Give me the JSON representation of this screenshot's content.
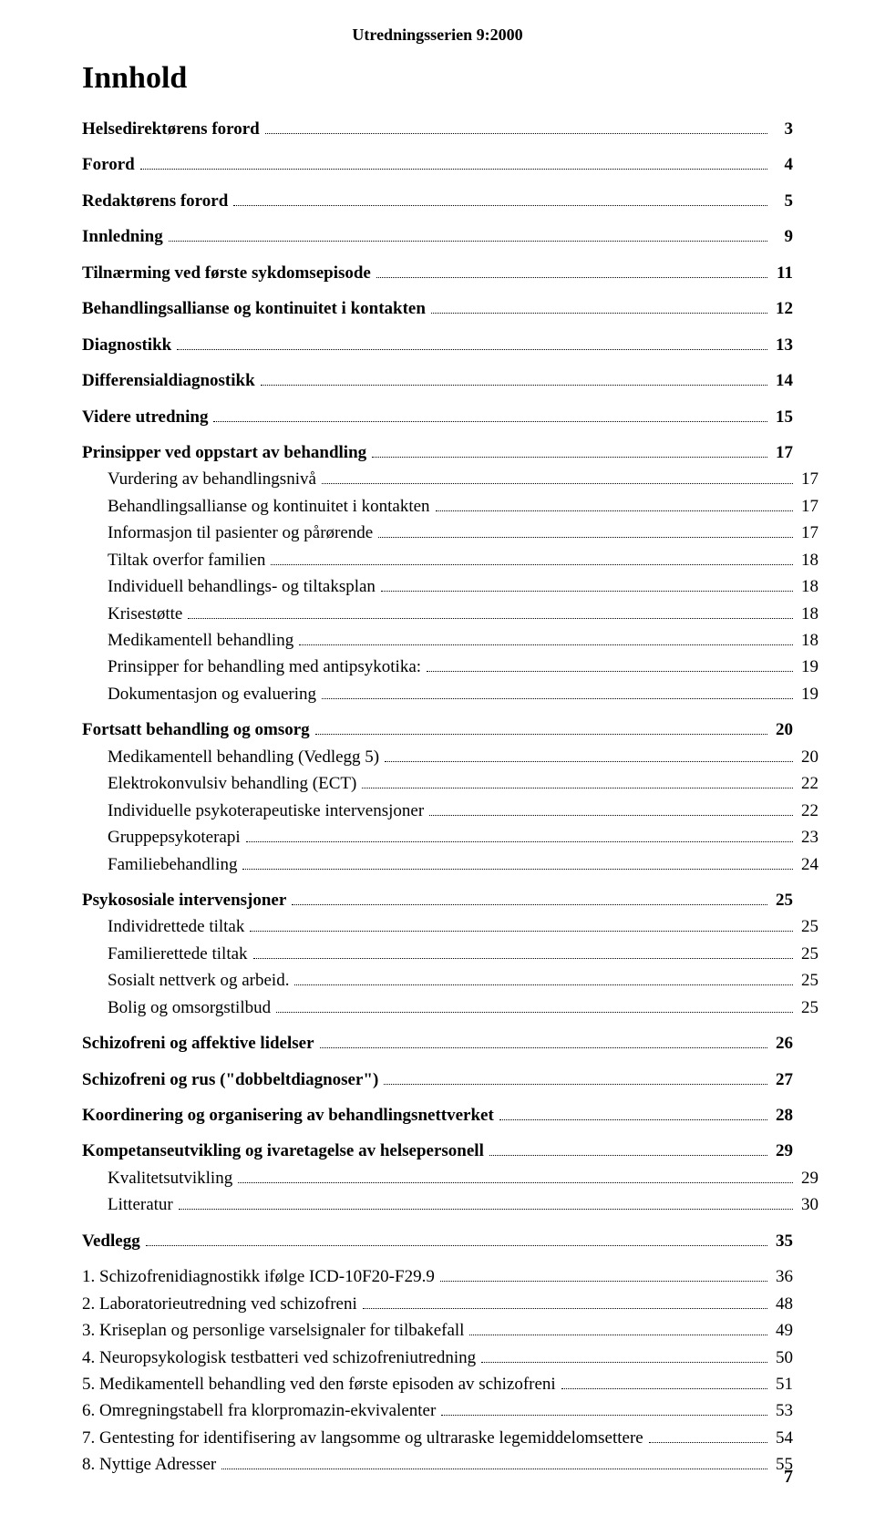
{
  "series_header": "Utredningsserien 9:2000",
  "doc_title": "Innhold",
  "page_number": "7",
  "toc": [
    {
      "label": "Helsedirektørens forord",
      "page": "3",
      "bold": true,
      "indent": 0,
      "gap_before": false
    },
    {
      "label": "Forord",
      "page": "4",
      "bold": true,
      "indent": 0,
      "gap_before": true
    },
    {
      "label": "Redaktørens forord",
      "page": "5",
      "bold": true,
      "indent": 0,
      "gap_before": true
    },
    {
      "label": "Innledning",
      "page": "9",
      "bold": true,
      "indent": 0,
      "gap_before": true
    },
    {
      "label": "Tilnærming ved første sykdomsepisode",
      "page": "11",
      "bold": true,
      "indent": 0,
      "gap_before": true
    },
    {
      "label": "Behandlingsallianse og kontinuitet i kontakten",
      "page": "12",
      "bold": true,
      "indent": 0,
      "gap_before": true
    },
    {
      "label": "Diagnostikk",
      "page": "13",
      "bold": true,
      "indent": 0,
      "gap_before": true
    },
    {
      "label": "Differensialdiagnostikk",
      "page": "14",
      "bold": true,
      "indent": 0,
      "gap_before": true
    },
    {
      "label": "Videre utredning",
      "page": "15",
      "bold": true,
      "indent": 0,
      "gap_before": true
    },
    {
      "label": "Prinsipper ved oppstart av behandling",
      "page": "17",
      "bold": true,
      "indent": 0,
      "gap_before": true
    },
    {
      "label": "Vurdering av behandlingsnivå",
      "page": "17",
      "bold": false,
      "indent": 1,
      "gap_before": false
    },
    {
      "label": "Behandlingsallianse og kontinuitet i kontakten",
      "page": "17",
      "bold": false,
      "indent": 1,
      "gap_before": false
    },
    {
      "label": "Informasjon til pasienter og pårørende",
      "page": "17",
      "bold": false,
      "indent": 1,
      "gap_before": false
    },
    {
      "label": "Tiltak overfor familien",
      "page": "18",
      "bold": false,
      "indent": 1,
      "gap_before": false
    },
    {
      "label": "Individuell behandlings- og tiltaksplan",
      "page": "18",
      "bold": false,
      "indent": 1,
      "gap_before": false
    },
    {
      "label": "Krisestøtte",
      "page": "18",
      "bold": false,
      "indent": 1,
      "gap_before": false
    },
    {
      "label": "Medikamentell behandling",
      "page": "18",
      "bold": false,
      "indent": 1,
      "gap_before": false
    },
    {
      "label": "Prinsipper for behandling med antipsykotika:",
      "page": "19",
      "bold": false,
      "indent": 1,
      "gap_before": false
    },
    {
      "label": "Dokumentasjon og evaluering",
      "page": "19",
      "bold": false,
      "indent": 1,
      "gap_before": false
    },
    {
      "label": "Fortsatt behandling og omsorg",
      "page": "20",
      "bold": true,
      "indent": 0,
      "gap_before": true
    },
    {
      "label": "Medikamentell behandling (Vedlegg 5)",
      "page": "20",
      "bold": false,
      "indent": 1,
      "gap_before": false
    },
    {
      "label": "Elektrokonvulsiv behandling (ECT)",
      "page": "22",
      "bold": false,
      "indent": 1,
      "gap_before": false
    },
    {
      "label": "Individuelle psykoterapeutiske intervensjoner",
      "page": "22",
      "bold": false,
      "indent": 1,
      "gap_before": false
    },
    {
      "label": "Gruppepsykoterapi",
      "page": "23",
      "bold": false,
      "indent": 1,
      "gap_before": false
    },
    {
      "label": "Familiebehandling",
      "page": "24",
      "bold": false,
      "indent": 1,
      "gap_before": false
    },
    {
      "label": "Psykososiale intervensjoner",
      "page": "25",
      "bold": true,
      "indent": 0,
      "gap_before": true
    },
    {
      "label": "Individrettede tiltak",
      "page": "25",
      "bold": false,
      "indent": 1,
      "gap_before": false
    },
    {
      "label": "Familierettede tiltak",
      "page": "25",
      "bold": false,
      "indent": 1,
      "gap_before": false
    },
    {
      "label": "Sosialt nettverk og arbeid.",
      "page": "25",
      "bold": false,
      "indent": 1,
      "gap_before": false
    },
    {
      "label": "Bolig og omsorgstilbud",
      "page": "25",
      "bold": false,
      "indent": 1,
      "gap_before": false
    },
    {
      "label": "Schizofreni og affektive lidelser",
      "page": "26",
      "bold": true,
      "indent": 0,
      "gap_before": true
    },
    {
      "label": "Schizofreni og rus (\"dobbeltdiagnoser\")",
      "page": "27",
      "bold": true,
      "indent": 0,
      "gap_before": true
    },
    {
      "label": "Koordinering og organisering av behandlingsnettverket",
      "page": "28",
      "bold": true,
      "indent": 0,
      "gap_before": true
    },
    {
      "label": "Kompetanseutvikling og ivaretagelse av helsepersonell",
      "page": "29",
      "bold": true,
      "indent": 0,
      "gap_before": true
    },
    {
      "label": "Kvalitetsutvikling",
      "page": "29",
      "bold": false,
      "indent": 1,
      "gap_before": false
    },
    {
      "label": "Litteratur",
      "page": "30",
      "bold": false,
      "indent": 1,
      "gap_before": false
    },
    {
      "label": "Vedlegg",
      "page": "35",
      "bold": true,
      "indent": 0,
      "gap_before": true
    },
    {
      "label": "1. Schizofrenidiagnostikk ifølge ICD-10F20-F29.9",
      "page": "36",
      "bold": false,
      "indent": 0,
      "gap_before": true
    },
    {
      "label": "2. Laboratorieutredning ved schizofreni",
      "page": "48",
      "bold": false,
      "indent": 0,
      "gap_before": false
    },
    {
      "label": "3. Kriseplan og personlige varselsignaler for tilbakefall",
      "page": "49",
      "bold": false,
      "indent": 0,
      "gap_before": false
    },
    {
      "label": "4. Neuropsykologisk testbatteri ved schizofreniutredning",
      "page": "50",
      "bold": false,
      "indent": 0,
      "gap_before": false
    },
    {
      "label": "5. Medikamentell behandling ved den første episoden av schizofreni",
      "page": "51",
      "bold": false,
      "indent": 0,
      "gap_before": false
    },
    {
      "label": "6. Omregningstabell fra klorpromazin-ekvivalenter",
      "page": "53",
      "bold": false,
      "indent": 0,
      "gap_before": false
    },
    {
      "label": "7. Gentesting for identifisering av langsomme og ultraraske legemiddelomsettere",
      "page": "54",
      "bold": false,
      "indent": 0,
      "gap_before": false
    },
    {
      "label": "8. Nyttige Adresser",
      "page": "55",
      "bold": false,
      "indent": 0,
      "gap_before": false
    }
  ]
}
